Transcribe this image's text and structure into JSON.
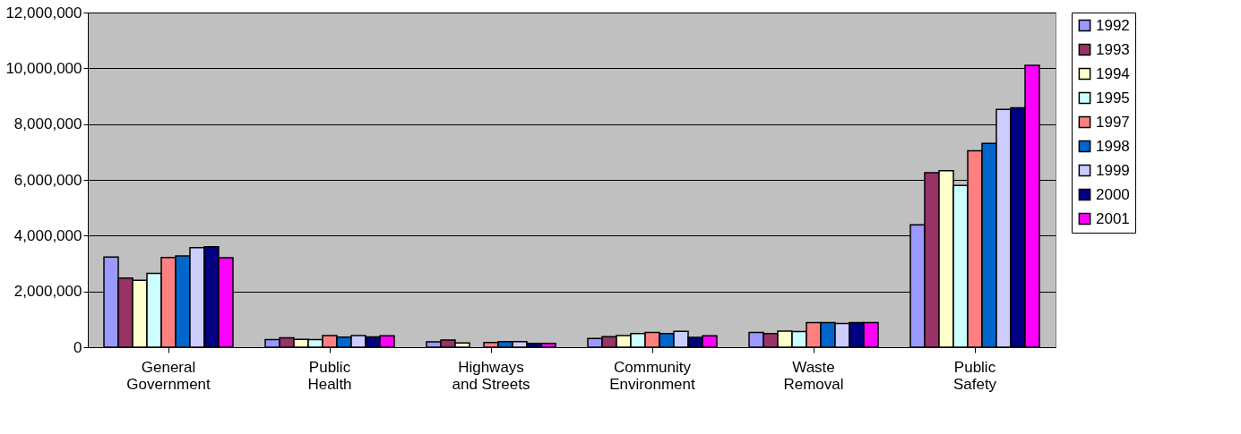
{
  "chart_data": {
    "type": "bar",
    "categories": [
      "General Government",
      "Public Health",
      "Highways and Streets",
      "Community Environment",
      "Waste Removal",
      "Public Safety"
    ],
    "series": [
      {
        "name": "1992",
        "color": "#9999ff",
        "values": [
          3230000,
          270000,
          190000,
          310000,
          530000,
          4390000
        ]
      },
      {
        "name": "1993",
        "color": "#993366",
        "values": [
          2480000,
          340000,
          260000,
          380000,
          490000,
          6260000
        ]
      },
      {
        "name": "1994",
        "color": "#ffffcc",
        "values": [
          2400000,
          280000,
          150000,
          420000,
          580000,
          6330000
        ]
      },
      {
        "name": "1995",
        "color": "#ccffff",
        "values": [
          2650000,
          270000,
          null,
          490000,
          560000,
          5800000
        ]
      },
      {
        "name": "1997",
        "color": "#ff8080",
        "values": [
          3220000,
          420000,
          170000,
          530000,
          880000,
          7040000
        ]
      },
      {
        "name": "1998",
        "color": "#0066cc",
        "values": [
          3270000,
          360000,
          200000,
          490000,
          880000,
          7310000
        ]
      },
      {
        "name": "1999",
        "color": "#ccccff",
        "values": [
          3570000,
          420000,
          200000,
          570000,
          850000,
          8530000
        ]
      },
      {
        "name": "2000",
        "color": "#000080",
        "values": [
          3600000,
          370000,
          140000,
          350000,
          880000,
          8580000
        ]
      },
      {
        "name": "2001",
        "color": "#ff00ff",
        "values": [
          3210000,
          410000,
          140000,
          410000,
          880000,
          10110000
        ]
      }
    ],
    "ylim": [
      0,
      12000000
    ],
    "yticks": [
      0,
      {
        "value": 2000000,
        "label": "2,000,000"
      },
      {
        "value": 4000000,
        "label": "4,000,000"
      },
      {
        "value": 6000000,
        "label": "6,000,000"
      },
      {
        "value": 8000000,
        "label": "8,000,000"
      },
      {
        "value": 10000000,
        "label": "10,000,000"
      },
      {
        "value": 12000000,
        "label": "12,000,000"
      }
    ],
    "grid": "y",
    "legend": "right"
  }
}
